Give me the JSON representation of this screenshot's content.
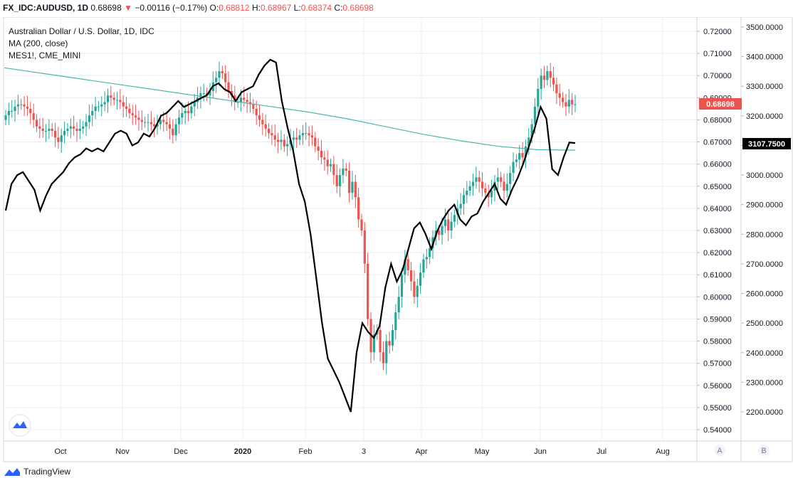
{
  "header": {
    "symbol": "FX_IDC:AUDUSD, 1D",
    "last": "0.68698",
    "change": "−0.00116 (−0.17%)",
    "o_label": "O:",
    "o_value": "0.68812",
    "h_label": "H:",
    "h_value": "0.68967",
    "l_label": "L:",
    "l_value": "0.68374",
    "c_label": "C:",
    "c_value": "0.68698"
  },
  "legend": {
    "title": "Australian Dollar / U.S. Dollar, 1D, IDC",
    "ma": "MA (200, close)",
    "compare": "MES1!, CME_MINI"
  },
  "brand": {
    "name": "TradingView"
  },
  "scale_buttons": [
    "A",
    "B"
  ],
  "colors": {
    "up": "#26a69a",
    "down": "#ef5350",
    "ma": "#4db6ac",
    "compare": "#000000",
    "grid": "#e9ecf2"
  },
  "chart_data": {
    "type": "candlestick",
    "x_ticks": [
      "Oct",
      "Nov",
      "Dec",
      "2020",
      "Feb",
      "3",
      "Apr",
      "May",
      "Jun",
      "Jul",
      "Aug"
    ],
    "y_left_ticks": [
      "0.72000",
      "0.71000",
      "0.70000",
      "0.69000",
      "0.68000",
      "0.67000",
      "0.66000",
      "0.65000",
      "0.64000",
      "0.63000",
      "0.62000",
      "0.61000",
      "0.60000",
      "0.59000",
      "0.58000",
      "0.57000",
      "0.56000",
      "0.55000",
      "0.54000"
    ],
    "y_right_ticks": [
      "3500.0000",
      "3400.0000",
      "3300.0000",
      "3200.0000",
      "3100.0000",
      "3000.0000",
      "2900.0000",
      "2800.0000",
      "2700.0000",
      "2600.0000",
      "2500.0000",
      "2400.0000",
      "2300.0000",
      "2200.0000"
    ],
    "y_left_range": [
      0.54,
      0.72
    ],
    "y_right_range": [
      2200,
      3500
    ],
    "price_label": "0.68698",
    "compare_label": "3107.7500",
    "audusd_close": [
      0.682,
      0.684,
      0.684,
      0.686,
      0.687,
      0.687,
      0.686,
      0.685,
      0.683,
      0.68,
      0.677,
      0.676,
      0.675,
      0.675,
      0.676,
      0.675,
      0.672,
      0.67,
      0.673,
      0.675,
      0.676,
      0.677,
      0.676,
      0.675,
      0.676,
      0.677,
      0.679,
      0.682,
      0.684,
      0.686,
      0.686,
      0.687,
      0.688,
      0.691,
      0.69,
      0.689,
      0.689,
      0.688,
      0.686,
      0.685,
      0.683,
      0.682,
      0.681,
      0.68,
      0.679,
      0.679,
      0.679,
      0.678,
      0.677,
      0.678,
      0.68,
      0.679,
      0.678,
      0.676,
      0.673,
      0.678,
      0.681,
      0.683,
      0.684,
      0.683,
      0.686,
      0.688,
      0.69,
      0.692,
      0.692,
      0.691,
      0.693,
      0.697,
      0.699,
      0.702,
      0.701,
      0.697,
      0.693,
      0.691,
      0.688,
      0.688,
      0.69,
      0.689,
      0.688,
      0.687,
      0.685,
      0.682,
      0.68,
      0.678,
      0.676,
      0.674,
      0.673,
      0.671,
      0.67,
      0.671,
      0.668,
      0.669,
      0.671,
      0.672,
      0.671,
      0.673,
      0.674,
      0.674,
      0.673,
      0.672,
      0.668,
      0.666,
      0.663,
      0.662,
      0.659,
      0.66,
      0.655,
      0.65,
      0.655,
      0.658,
      0.657,
      0.647,
      0.652,
      0.645,
      0.635,
      0.63,
      0.615,
      0.59,
      0.575,
      0.583,
      0.585,
      0.575,
      0.57,
      0.58,
      0.578,
      0.585,
      0.593,
      0.6,
      0.61,
      0.617,
      0.612,
      0.607,
      0.6,
      0.605,
      0.611,
      0.617,
      0.618,
      0.622,
      0.627,
      0.63,
      0.628,
      0.632,
      0.635,
      0.63,
      0.634,
      0.637,
      0.64,
      0.642,
      0.646,
      0.648,
      0.65,
      0.652,
      0.654,
      0.652,
      0.649,
      0.647,
      0.645,
      0.648,
      0.652,
      0.654,
      0.652,
      0.648,
      0.651,
      0.656,
      0.661,
      0.662,
      0.665,
      0.663,
      0.668,
      0.672,
      0.678,
      0.686,
      0.694,
      0.7,
      0.698,
      0.702,
      0.699,
      0.696,
      0.692,
      0.69,
      0.688,
      0.686,
      0.689,
      0.687,
      0.687
    ],
    "ma_200": [
      0.7035,
      0.701,
      0.6985,
      0.696,
      0.6935,
      0.691,
      0.6885,
      0.686,
      0.6835,
      0.6805,
      0.677,
      0.6735,
      0.6705,
      0.668,
      0.6665,
      0.6663
    ],
    "mes_compare": [
      2880,
      2970,
      3000,
      3010,
      2980,
      2950,
      2880,
      2930,
      2970,
      2990,
      3010,
      3040,
      3060,
      3070,
      3090,
      3080,
      3090,
      3080,
      3110,
      3140,
      3150,
      3140,
      3100,
      3110,
      3140,
      3130,
      3160,
      3200,
      3210,
      3230,
      3250,
      3230,
      3240,
      3250,
      3260,
      3270,
      3300,
      3310,
      3290,
      3280,
      3250,
      3280,
      3290,
      3300,
      3340,
      3370,
      3390,
      3380,
      3250,
      3160,
      3080,
      2970,
      2910,
      2800,
      2650,
      2500,
      2380,
      2340,
      2300,
      2250,
      2200,
      2400,
      2500,
      2470,
      2450,
      2490,
      2620,
      2700,
      2640,
      2680,
      2750,
      2820,
      2840,
      2800,
      2750,
      2810,
      2850,
      2880,
      2900,
      2850,
      2830,
      2860,
      2870,
      2910,
      2940,
      2970,
      2920,
      2900,
      2950,
      2990,
      3040,
      3100,
      3160,
      3230,
      3190,
      3020,
      3000,
      3060,
      3110,
      3108
    ]
  }
}
